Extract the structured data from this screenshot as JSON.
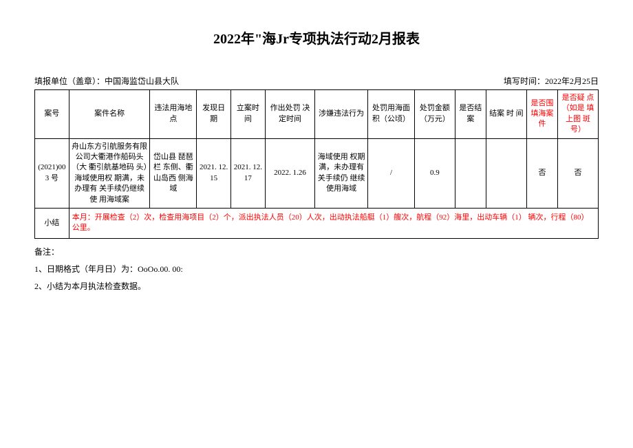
{
  "title": "2022年\"海Jr专项执法行动2月报表",
  "reporting_unit_label": "填报单位（盖章）：中国海监岱山县大队",
  "report_date_label": "填写时间：2022年2月25日",
  "headers": {
    "case_no": "案号",
    "case_name": "案件名称",
    "location": "违法用海地点",
    "discover_date": "发现日期",
    "filing_time": "立案时间",
    "penalty_date": "作出处罚 决定时间",
    "violation": "涉嫌违法行为",
    "penalty_area": "处罚用海面积（公顷）",
    "fine_amount": "处罚金额（万元）",
    "is_closed": "是否结案",
    "close_time": "结案 时 间",
    "is_enclosure": "是否围填海案件",
    "is_doubt": "是否疑 点（如是 填上图 斑号）"
  },
  "rows": [
    {
      "case_no": "(2021)003 号",
      "case_name": "舟山东方引航服务有限公司大衢港作船码头（大 衢引航基地码 头）海域使用权 期满，未办理有   关手续仍继续使 用海域案",
      "location": "岱山县 琵琶栏 东侧、衢 山岛西 侧海域",
      "discover_date": "2021. 12. 15",
      "filing_time": "2021. 12. 17",
      "penalty_date": "2022. 1.26",
      "violation": "海域使用 权期满，未办理有 关手续仍 继续使用海域",
      "penalty_area": "/",
      "fine_amount": "0.9",
      "is_closed": "",
      "close_time": "",
      "is_enclosure": "否",
      "is_doubt": "否"
    }
  ],
  "summary_label": "小结",
  "summary_text": "本月：开展检查（2）次，检查用海项目（2）个，派出执法人员（20）人次，出动执法船艇（1）艘次，航程（92）海里，出动车辆（1）  辆次，行程（80）公里。",
  "notes_label": "备注：",
  "note1": "1、日期格式（年月日）为：OoOo.00. 00:",
  "note2": "2、小结为本月执法检查数据。",
  "colors": {
    "red": "#ff0000",
    "black": "#000000",
    "background": "#ffffff"
  }
}
